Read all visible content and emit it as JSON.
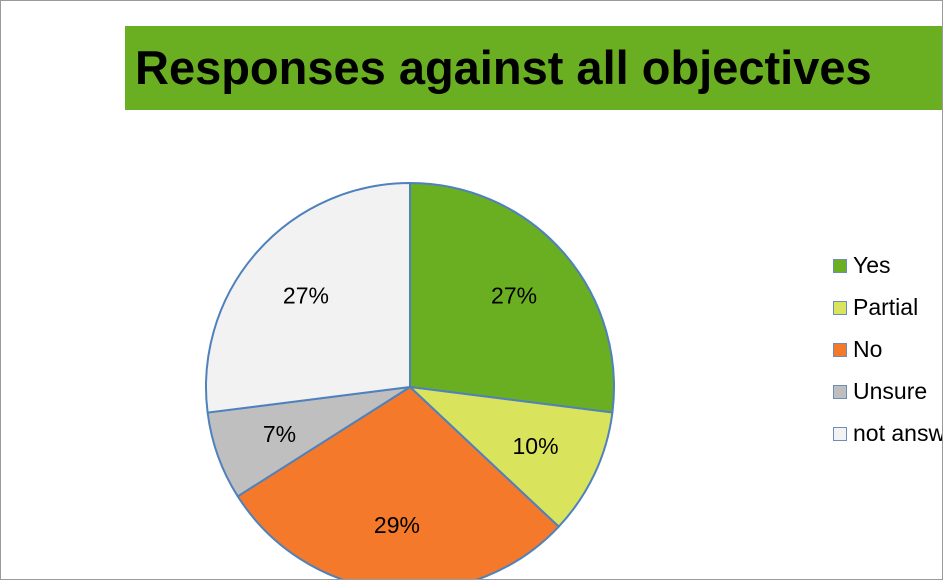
{
  "chart_data": {
    "type": "pie",
    "title": "Responses against all objectives",
    "colors": {
      "title_band": "#6aaf22",
      "slice_border": "#4f81bd"
    },
    "slices": [
      {
        "label": "Yes",
        "value": 27,
        "value_label": "27%",
        "color": "#6aaf22"
      },
      {
        "label": "Partial",
        "value": 10,
        "value_label": "10%",
        "color": "#d9e35c"
      },
      {
        "label": "No",
        "value": 29,
        "value_label": "29%",
        "color": "#f5792a"
      },
      {
        "label": "Unsure",
        "value": 7,
        "value_label": "7%",
        "color": "#bfbfbf"
      },
      {
        "label": "not answered",
        "value": 27,
        "value_label": "27%",
        "color": "#f2f2f2"
      }
    ],
    "legend": {
      "position": "right",
      "items": [
        "Yes",
        "Partial",
        "No",
        "Unsure",
        "not answered"
      ]
    }
  }
}
